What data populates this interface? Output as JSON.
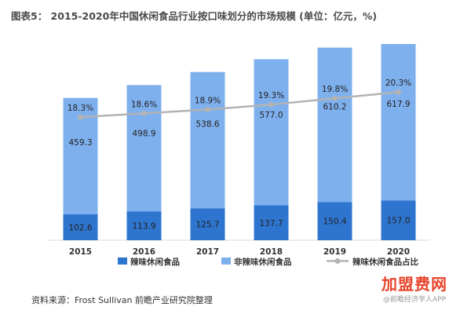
{
  "figure": {
    "title": "图表5： 2015-2020年中国休闲食品行业按口味划分的市场规模 (单位：亿元，%)",
    "source": "资料来源：Frost Sullivan 前瞻产业研究院整理"
  },
  "watermark": {
    "logo_text": "加盟费网",
    "logo_sub": "@前瞻经济学人APP"
  },
  "colors": {
    "spicy": "#2e75d0",
    "non_spicy": "#7fb0ee",
    "share_line": "#b3b3b3",
    "grid": "#d9d9d9"
  },
  "chart_data": {
    "type": "bar",
    "stacked": true,
    "categories": [
      "2015",
      "2016",
      "2017",
      "2018",
      "2019",
      "2020"
    ],
    "series": [
      {
        "name": "辣味休闲食品",
        "type": "bar",
        "values": [
          102.6,
          113.9,
          125.7,
          137.7,
          150.4,
          157.0
        ]
      },
      {
        "name": "非辣味休闲食品",
        "type": "bar",
        "values": [
          459.3,
          498.9,
          538.6,
          577.0,
          610.2,
          617.9
        ]
      },
      {
        "name": "辣味休闲食品占比",
        "type": "line",
        "values": [
          18.3,
          18.6,
          18.9,
          19.3,
          19.8,
          20.3
        ],
        "labels": [
          "18.3%",
          "18.6%",
          "18.9%",
          "19.3%",
          "19.8%",
          "20.3%"
        ]
      }
    ],
    "bar_labels": {
      "spicy": [
        "102.6",
        "113.9",
        "125.7",
        "137.7",
        "150.4",
        "157.0"
      ],
      "non_spicy": [
        "459.3",
        "498.9",
        "538.6",
        "577.0",
        "610.2",
        "617.9"
      ]
    },
    "ylim": [
      0,
      775
    ],
    "share_ylim": [
      0,
      24
    ],
    "legend_position": "bottom",
    "grid": false
  }
}
